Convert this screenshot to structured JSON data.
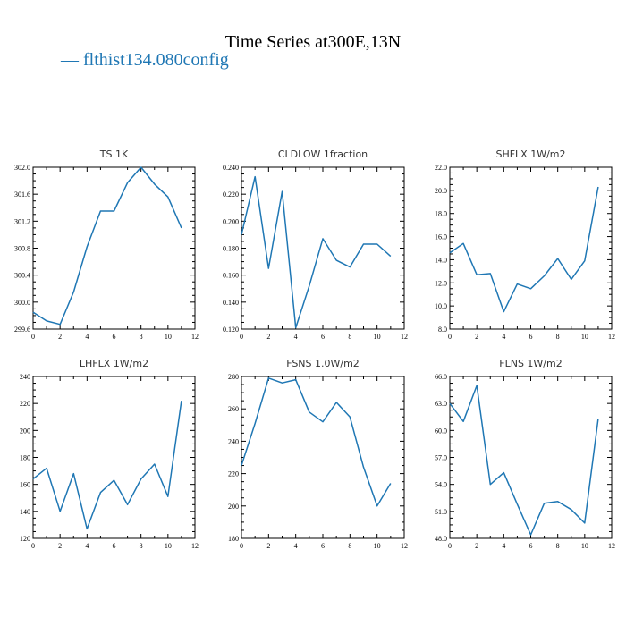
{
  "figure": {
    "title": "Time Series at300E,13N",
    "legend": {
      "marker": "—",
      "label": "flthist134.080config",
      "color": "#1f77b4"
    }
  },
  "chart_data": [
    {
      "type": "line",
      "title": "TS   1K",
      "x": [
        0,
        1,
        2,
        3,
        4,
        5,
        6,
        7,
        8,
        9,
        10,
        11
      ],
      "series": [
        {
          "values": [
            299.85,
            299.72,
            299.67,
            300.15,
            300.82,
            301.35,
            301.35,
            301.77,
            302.0,
            301.75,
            301.56,
            301.1
          ],
          "color": "#1f77b4"
        }
      ],
      "xlim": [
        0,
        12
      ],
      "ylim": [
        299.6,
        302.0
      ],
      "xticks": [
        "0",
        "2",
        "4",
        "6",
        "8",
        "10",
        "12"
      ],
      "yticks": [
        "299.6",
        "300.0",
        "300.4",
        "300.8",
        "301.2",
        "301.6",
        "302.0"
      ]
    },
    {
      "type": "line",
      "title": "CLDLOW   1fraction",
      "x": [
        0,
        1,
        2,
        3,
        4,
        5,
        6,
        7,
        8,
        9,
        10,
        11
      ],
      "series": [
        {
          "values": [
            0.19,
            0.233,
            0.165,
            0.222,
            0.121,
            0.152,
            0.187,
            0.171,
            0.166,
            0.183,
            0.183,
            0.174
          ],
          "color": "#1f77b4"
        }
      ],
      "xlim": [
        0,
        12
      ],
      "ylim": [
        0.12,
        0.24
      ],
      "xticks": [
        "0",
        "2",
        "4",
        "6",
        "8",
        "10",
        "12"
      ],
      "yticks": [
        "0.120",
        "0.140",
        "0.160",
        "0.180",
        "0.200",
        "0.220",
        "0.240"
      ]
    },
    {
      "type": "line",
      "title": "SHFLX   1W/m2",
      "x": [
        0,
        1,
        2,
        3,
        4,
        5,
        6,
        7,
        8,
        9,
        10,
        11
      ],
      "series": [
        {
          "values": [
            14.6,
            15.4,
            12.7,
            12.8,
            9.5,
            11.9,
            11.5,
            12.6,
            14.1,
            12.3,
            13.9,
            20.3
          ],
          "color": "#1f77b4"
        }
      ],
      "xlim": [
        0,
        12
      ],
      "ylim": [
        8.0,
        22.0
      ],
      "xticks": [
        "0",
        "2",
        "4",
        "6",
        "8",
        "10",
        "12"
      ],
      "yticks": [
        "8.0",
        "10.0",
        "12.0",
        "14.0",
        "16.0",
        "18.0",
        "20.0",
        "22.0"
      ]
    },
    {
      "type": "line",
      "title": "LHFLX   1W/m2",
      "x": [
        0,
        1,
        2,
        3,
        4,
        5,
        6,
        7,
        8,
        9,
        10,
        11
      ],
      "series": [
        {
          "values": [
            164,
            172,
            140,
            168,
            127,
            154,
            163,
            145,
            164,
            175,
            151,
            222
          ],
          "color": "#1f77b4"
        }
      ],
      "xlim": [
        0,
        12
      ],
      "ylim": [
        120,
        240
      ],
      "xticks": [
        "0",
        "2",
        "4",
        "6",
        "8",
        "10",
        "12"
      ],
      "yticks": [
        "120",
        "140",
        "160",
        "180",
        "200",
        "220",
        "240"
      ]
    },
    {
      "type": "line",
      "title": "FSNS   1.0W/m2",
      "x": [
        0,
        1,
        2,
        3,
        4,
        5,
        6,
        7,
        8,
        9,
        10,
        11
      ],
      "series": [
        {
          "values": [
            225,
            251,
            279,
            276,
            278,
            258,
            252,
            264,
            255,
            224,
            200,
            214
          ],
          "color": "#1f77b4"
        }
      ],
      "xlim": [
        0,
        12
      ],
      "ylim": [
        180,
        280
      ],
      "xticks": [
        "0",
        "2",
        "4",
        "6",
        "8",
        "10",
        "12"
      ],
      "yticks": [
        "180",
        "200",
        "220",
        "240",
        "260",
        "280"
      ]
    },
    {
      "type": "line",
      "title": "FLNS   1W/m2",
      "x": [
        0,
        1,
        2,
        3,
        4,
        5,
        6,
        7,
        8,
        9,
        10,
        11
      ],
      "series": [
        {
          "values": [
            63.0,
            61.0,
            65.0,
            54.0,
            55.3,
            51.8,
            48.4,
            51.9,
            52.1,
            51.2,
            49.7,
            61.3
          ],
          "color": "#1f77b4"
        }
      ],
      "xlim": [
        0,
        12
      ],
      "ylim": [
        48.0,
        66.0
      ],
      "xticks": [
        "0",
        "2",
        "4",
        "6",
        "8",
        "10",
        "12"
      ],
      "yticks": [
        "48.0",
        "51.0",
        "54.0",
        "57.0",
        "60.0",
        "63.0",
        "66.0"
      ]
    }
  ]
}
